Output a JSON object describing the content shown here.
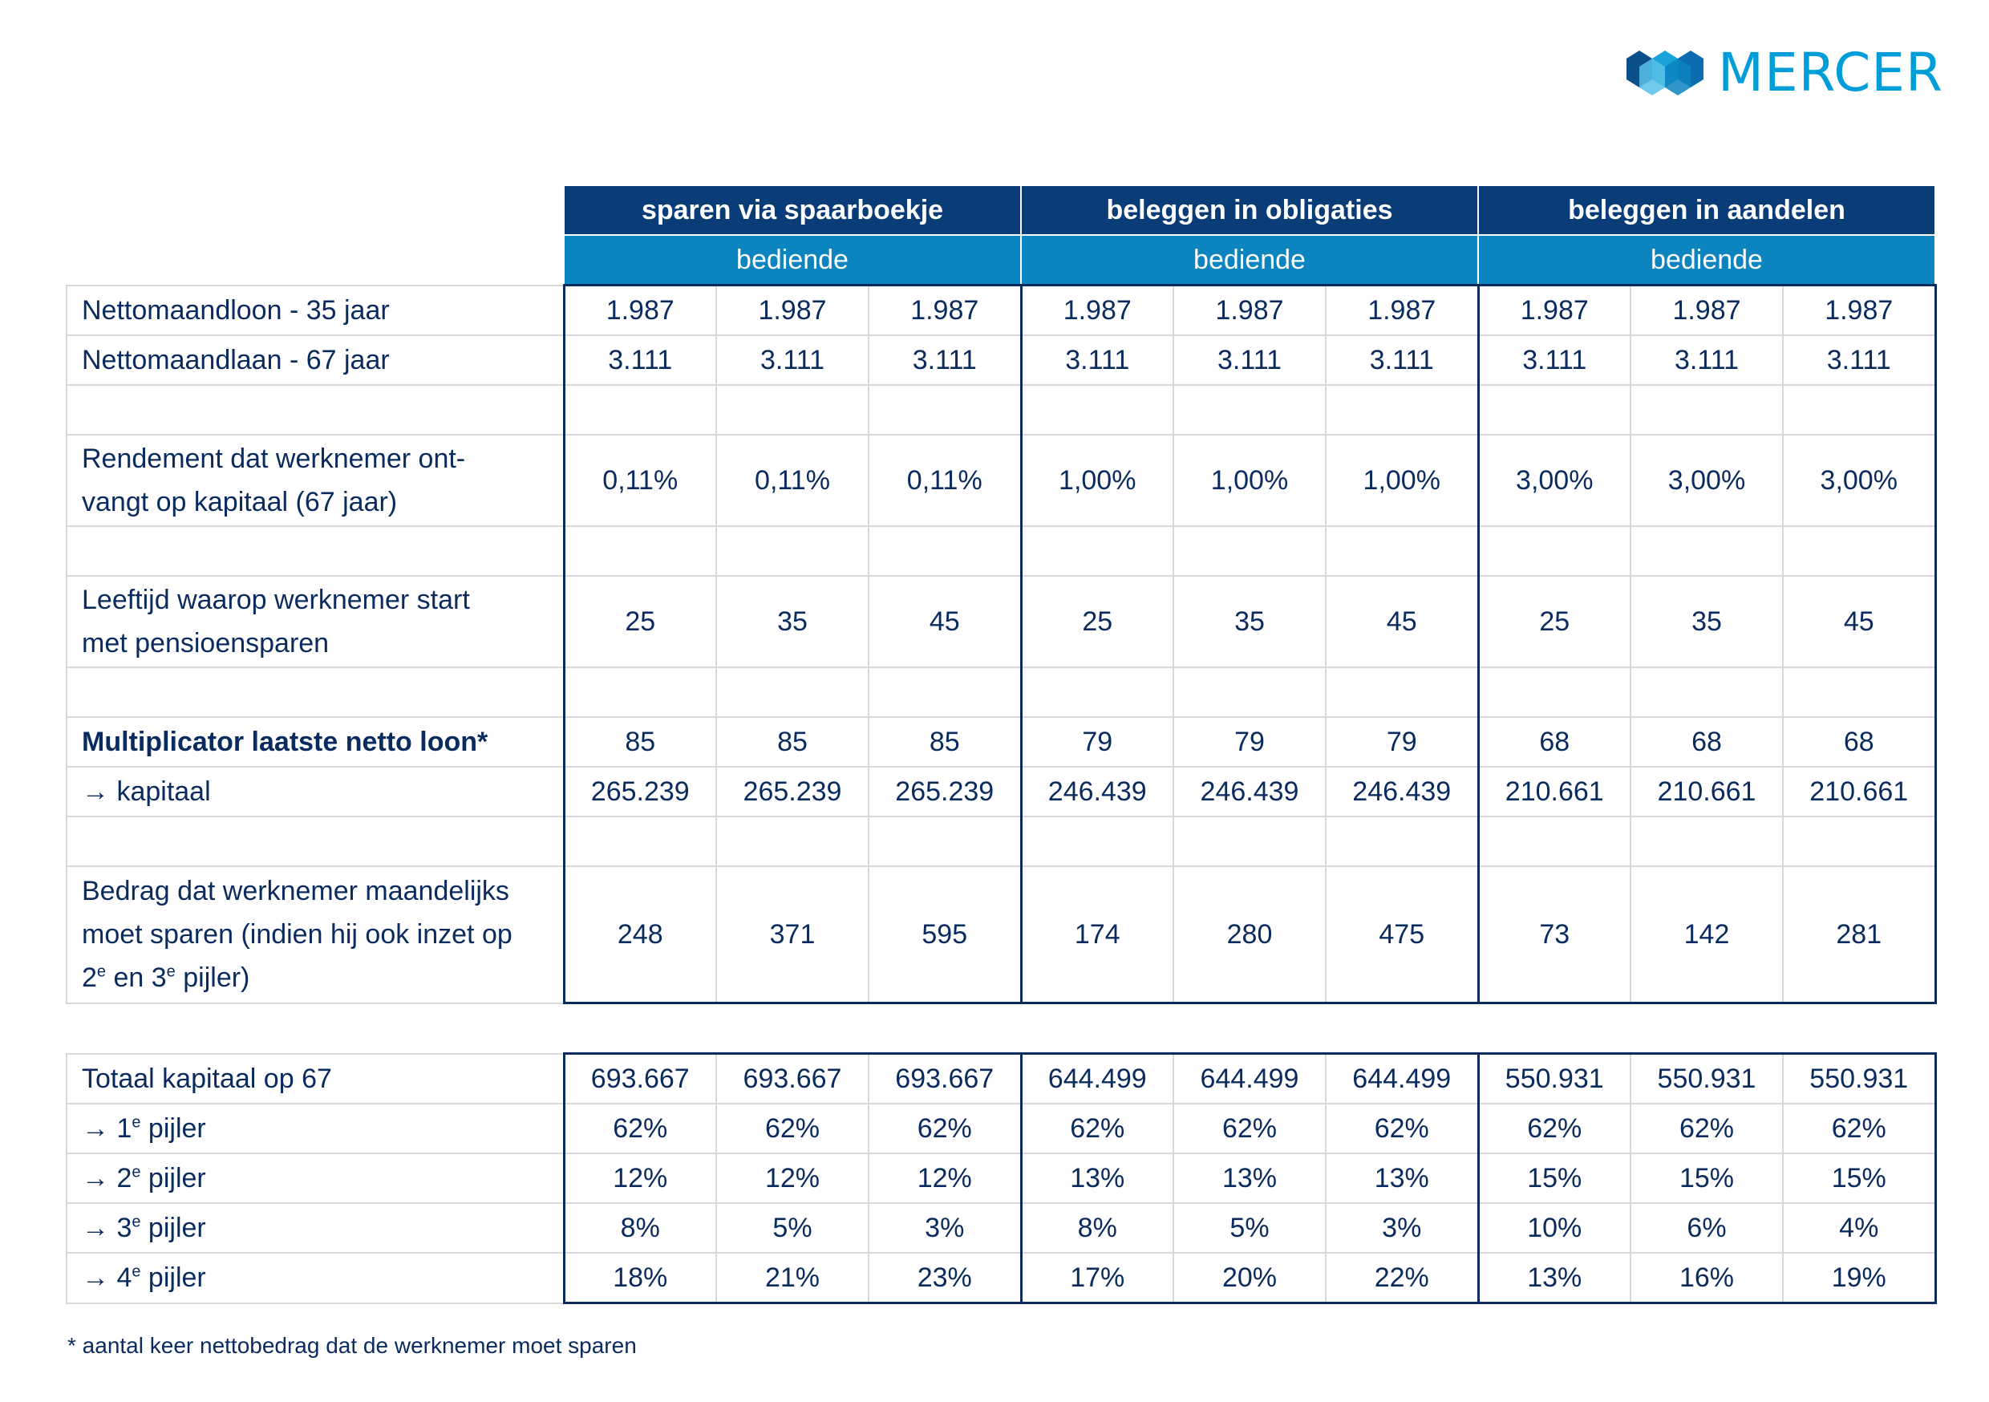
{
  "brand": {
    "name": "MERCER",
    "color": "#009ed8",
    "icon": "mercer-logo-icon"
  },
  "header": {
    "groups": [
      "sparen via spaarboekje",
      "beleggen in obligaties",
      "beleggen in aandelen"
    ],
    "sub": [
      "bediende",
      "bediende",
      "bediende"
    ]
  },
  "rows": {
    "nettoloon": {
      "label": "Nettomaandloon -  35 jaar",
      "values": [
        "1.987",
        "1.987",
        "1.987",
        "1.987",
        "1.987",
        "1.987",
        "1.987",
        "1.987",
        "1.987"
      ]
    },
    "nettolaan": {
      "label": "Nettomaandlaan - 67 jaar",
      "values": [
        "3.111",
        "3.111",
        "3.111",
        "3.111",
        "3.111",
        "3.111",
        "3.111",
        "3.111",
        "3.111"
      ]
    },
    "rendement": {
      "label_line1": "Rendement dat werknemer ont-",
      "label_line2": "vangt op kapitaal (67 jaar)",
      "values": [
        "0,11%",
        "0,11%",
        "0,11%",
        "1,00%",
        "1,00%",
        "1,00%",
        "3,00%",
        "3,00%",
        "3,00%"
      ]
    },
    "leeftijd": {
      "label_line1": "Leeftijd waarop werknemer start",
      "label_line2": "met pensioensparen",
      "values": [
        "25",
        "35",
        "45",
        "25",
        "35",
        "45",
        "25",
        "35",
        "45"
      ]
    },
    "multiplicator": {
      "label": "Multiplicator laatste netto loon*",
      "values": [
        "85",
        "85",
        "85",
        "79",
        "79",
        "79",
        "68",
        "68",
        "68"
      ]
    },
    "kapitaal": {
      "label": "→ kapitaal",
      "values": [
        "265.239",
        "265.239",
        "265.239",
        "246.439",
        "246.439",
        "246.439",
        "210.661",
        "210.661",
        "210.661"
      ]
    },
    "bedrag": {
      "label_line1": "Bedrag dat werknemer maandelijks",
      "label_line2": "moet sparen (indien hij ook inzet op",
      "label_line3_a": "2",
      "label_line3_sup_a": "e",
      "label_line3_b": " en 3",
      "label_line3_sup_b": "e",
      "label_line3_c": " pijler)",
      "values": [
        "248",
        "371",
        "595",
        "174",
        "280",
        "475",
        "73",
        "142",
        "281"
      ]
    }
  },
  "totals": {
    "totaal": {
      "label": "Totaal kapitaal op 67",
      "values": [
        "693.667",
        "693.667",
        "693.667",
        "644.499",
        "644.499",
        "644.499",
        "550.931",
        "550.931",
        "550.931"
      ]
    },
    "p1": {
      "label_pre": "→ 1",
      "label_sup": "e",
      "label_post": " pijler",
      "values": [
        "62%",
        "62%",
        "62%",
        "62%",
        "62%",
        "62%",
        "62%",
        "62%",
        "62%"
      ]
    },
    "p2": {
      "label_pre": "→ 2",
      "label_sup": "e",
      "label_post": " pijler",
      "values": [
        "12%",
        "12%",
        "12%",
        "13%",
        "13%",
        "13%",
        "15%",
        "15%",
        "15%"
      ]
    },
    "p3": {
      "label_pre": "→ 3",
      "label_sup": "e",
      "label_post": " pijler",
      "values": [
        "8%",
        "5%",
        "3%",
        "8%",
        "5%",
        "3%",
        "10%",
        "6%",
        "4%"
      ]
    },
    "p4": {
      "label_pre": "→ 4",
      "label_sup": "e",
      "label_post": " pijler",
      "values": [
        "18%",
        "21%",
        "23%",
        "17%",
        "20%",
        "22%",
        "13%",
        "16%",
        "19%"
      ]
    }
  },
  "footnote": "* aantal keer nettobedrag dat de werknemer moet sparen",
  "colors": {
    "dark_navy": "#0a3c78",
    "header_blue": "#0c84c0",
    "text": "#0a2b5e"
  }
}
